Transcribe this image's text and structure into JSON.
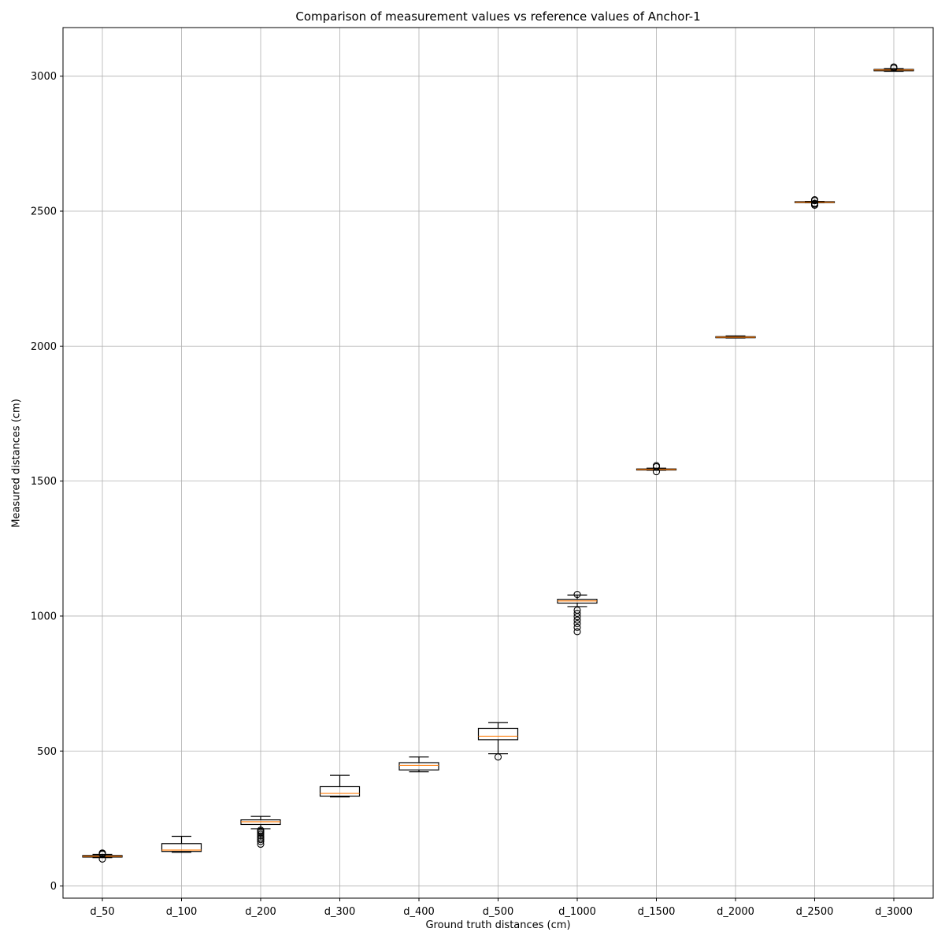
{
  "chart_data": {
    "type": "box",
    "title": "Comparison of measurement values vs reference values of Anchor-1",
    "xlabel": "Ground truth distances (cm)",
    "ylabel": "Measured distances (cm)",
    "ylim": [
      -45,
      3180
    ],
    "yticks": [
      0,
      500,
      1000,
      1500,
      2000,
      2500,
      3000
    ],
    "grid": true,
    "categories": [
      "d_50",
      "d_100",
      "d_200",
      "d_300",
      "d_400",
      "d_500",
      "d_1000",
      "d_1500",
      "d_2000",
      "d_2500",
      "d_3000"
    ],
    "boxes": [
      {
        "whisker_low": 105,
        "q1": 107,
        "median": 110,
        "q3": 113,
        "whisker_high": 117,
        "outliers": [
          100,
          118,
          120,
          122
        ]
      },
      {
        "whisker_low": 125,
        "q1": 128,
        "median": 133,
        "q3": 157,
        "whisker_high": 184,
        "outliers": []
      },
      {
        "whisker_low": 212,
        "q1": 228,
        "median": 238,
        "q3": 245,
        "whisker_high": 258,
        "outliers": [
          155,
          165,
          172,
          178,
          185,
          192,
          198,
          203,
          207
        ]
      },
      {
        "whisker_low": 330,
        "q1": 333,
        "median": 343,
        "q3": 368,
        "whisker_high": 410,
        "outliers": []
      },
      {
        "whisker_low": 423,
        "q1": 430,
        "median": 447,
        "q3": 457,
        "whisker_high": 478,
        "outliers": []
      },
      {
        "whisker_low": 490,
        "q1": 542,
        "median": 555,
        "q3": 584,
        "whisker_high": 605,
        "outliers": [
          478
        ]
      },
      {
        "whisker_low": 1035,
        "q1": 1048,
        "median": 1056,
        "q3": 1062,
        "whisker_high": 1078,
        "outliers": [
          942,
          958,
          972,
          985,
          998,
          1010,
          1022,
          1080
        ]
      },
      {
        "whisker_low": 1540,
        "q1": 1541,
        "median": 1543,
        "q3": 1545,
        "whisker_high": 1548,
        "outliers": [
          1535,
          1553,
          1557
        ]
      },
      {
        "whisker_low": 2030,
        "q1": 2031,
        "median": 2033,
        "q3": 2035,
        "whisker_high": 2038,
        "outliers": []
      },
      {
        "whisker_low": 2531,
        "q1": 2532,
        "median": 2533,
        "q3": 2535,
        "whisker_high": 2536,
        "outliers": [
          2522,
          2526,
          2529,
          2539,
          2542
        ]
      },
      {
        "whisker_low": 3018,
        "q1": 3020,
        "median": 3023,
        "q3": 3025,
        "whisker_high": 3028,
        "outliers": [
          3030,
          3034
        ]
      }
    ],
    "colors": {
      "box": "#000000",
      "median": "#ff7f0e",
      "grid": "#b0b0b0",
      "outlier_fill": "none"
    }
  }
}
